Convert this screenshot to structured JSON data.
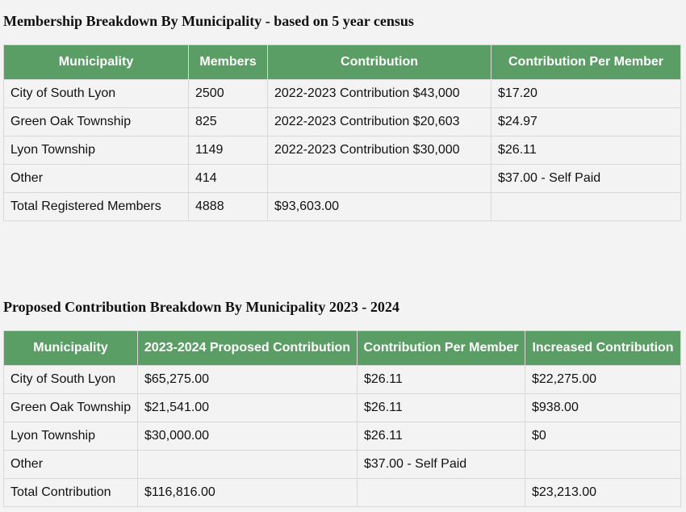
{
  "sections": [
    {
      "title": "Membership Breakdown By Municipality - based on 5 year census",
      "headers": [
        "Municipality",
        "Members",
        "Contribution",
        "Contribution Per Member"
      ],
      "rows": [
        [
          "City of South Lyon",
          "2500",
          "2022-2023 Contribution $43,000",
          "$17.20"
        ],
        [
          "Green Oak Township",
          "825",
          "2022-2023 Contribution $20,603",
          "$24.97"
        ],
        [
          "Lyon Township",
          "1149",
          "2022-2023 Contribution $30,000",
          "$26.11"
        ],
        [
          "Other",
          "414",
          "",
          "$37.00 - Self Paid"
        ],
        [
          "Total Registered Members",
          "4888",
          "$93,603.00",
          ""
        ]
      ]
    },
    {
      "title": "Proposed Contribution Breakdown By Municipality 2023 - 2024",
      "headers": [
        "Municipality",
        "2023-2024 Proposed Contribution",
        "Contribution Per Member",
        "Increased Contribution"
      ],
      "rows": [
        [
          "City of South Lyon",
          "$65,275.00",
          "$26.11",
          "$22,275.00"
        ],
        [
          "Green Oak Township",
          "$21,541.00",
          "$26.11",
          "$938.00"
        ],
        [
          "Lyon Township",
          "$30,000.00",
          "$26.11",
          "$0"
        ],
        [
          "Other",
          "",
          "$37.00 - Self Paid",
          ""
        ],
        [
          "Total Contribution",
          "$116,816.00",
          "",
          "$23,213.00"
        ]
      ]
    }
  ]
}
